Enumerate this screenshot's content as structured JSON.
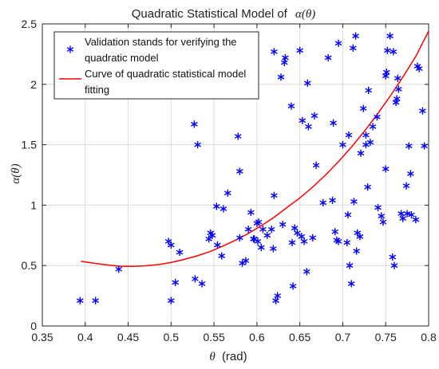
{
  "chart_data": {
    "type": "scatter",
    "title": {
      "prefix": "Quadratic Statistical Model of",
      "math": "α(θ)"
    },
    "xlabel": {
      "symbol": "θ",
      "unit": "(rad)"
    },
    "ylabel": "α(θ)",
    "xlim": [
      0.35,
      0.8
    ],
    "ylim": [
      0,
      2.5
    ],
    "xticks": [
      "0.35",
      "0.4",
      "0.45",
      "0.5",
      "0.55",
      "0.6",
      "0.65",
      "0.7",
      "0.75",
      "0.8"
    ],
    "yticks": [
      "0",
      "0.5",
      "1",
      "1.5",
      "2",
      "2.5"
    ],
    "grid": true,
    "legend_position": "top-left",
    "series": [
      {
        "name": "Validation stands for verifying the quadratic model",
        "legend_lines": [
          "Validation stands for verifying the",
          "quadratic model"
        ],
        "type": "scatter",
        "marker": "*",
        "color": "#0000ff",
        "points": [
          [
            0.394,
            0.21
          ],
          [
            0.412,
            0.21
          ],
          [
            0.439,
            0.47
          ],
          [
            0.497,
            0.7
          ],
          [
            0.5,
            0.67
          ],
          [
            0.5,
            0.21
          ],
          [
            0.505,
            0.36
          ],
          [
            0.51,
            0.61
          ],
          [
            0.527,
            1.67
          ],
          [
            0.528,
            0.39
          ],
          [
            0.531,
            1.5
          ],
          [
            0.536,
            0.35
          ],
          [
            0.544,
            0.72
          ],
          [
            0.546,
            0.77
          ],
          [
            0.548,
            0.75
          ],
          [
            0.553,
            0.99
          ],
          [
            0.554,
            0.67
          ],
          [
            0.559,
            0.58
          ],
          [
            0.561,
            0.97
          ],
          [
            0.566,
            1.1
          ],
          [
            0.578,
            1.57
          ],
          [
            0.58,
            1.28
          ],
          [
            0.58,
            0.73
          ],
          [
            0.583,
            0.52
          ],
          [
            0.587,
            0.54
          ],
          [
            0.59,
            0.8
          ],
          [
            0.593,
            0.94
          ],
          [
            0.596,
            0.72
          ],
          [
            0.597,
            0.72
          ],
          [
            0.6,
            0.85
          ],
          [
            0.601,
            0.7
          ],
          [
            0.602,
            0.86
          ],
          [
            0.605,
            0.65
          ],
          [
            0.607,
            0.8
          ],
          [
            0.612,
            0.75
          ],
          [
            0.617,
            0.8
          ],
          [
            0.619,
            0.64
          ],
          [
            0.62,
            1.08
          ],
          [
            0.62,
            2.27
          ],
          [
            0.622,
            0.21
          ],
          [
            0.624,
            0.25
          ],
          [
            0.628,
            2.06
          ],
          [
            0.63,
            0.84
          ],
          [
            0.632,
            2.18
          ],
          [
            0.633,
            2.22
          ],
          [
            0.64,
            1.82
          ],
          [
            0.641,
            0.69
          ],
          [
            0.642,
            0.33
          ],
          [
            0.644,
            0.81
          ],
          [
            0.647,
            0.77
          ],
          [
            0.65,
            2.28
          ],
          [
            0.652,
            0.74
          ],
          [
            0.653,
            1.7
          ],
          [
            0.655,
            0.7
          ],
          [
            0.658,
            0.45
          ],
          [
            0.659,
            2.01
          ],
          [
            0.66,
            1.65
          ],
          [
            0.665,
            0.73
          ],
          [
            0.667,
            1.74
          ],
          [
            0.669,
            1.33
          ],
          [
            0.677,
            1.02
          ],
          [
            0.683,
            2.22
          ],
          [
            0.688,
            1.04
          ],
          [
            0.689,
            1.68
          ],
          [
            0.691,
            0.78
          ],
          [
            0.693,
            0.71
          ],
          [
            0.695,
            0.7
          ],
          [
            0.695,
            2.34
          ],
          [
            0.7,
            1.5
          ],
          [
            0.705,
            0.69
          ],
          [
            0.706,
            0.92
          ],
          [
            0.707,
            1.58
          ],
          [
            0.708,
            0.5
          ],
          [
            0.71,
            0.35
          ],
          [
            0.712,
            2.3
          ],
          [
            0.713,
            1.03
          ],
          [
            0.715,
            2.4
          ],
          [
            0.716,
            0.62
          ],
          [
            0.717,
            0.77
          ],
          [
            0.72,
            0.74
          ],
          [
            0.721,
            1.43
          ],
          [
            0.724,
            1.8
          ],
          [
            0.727,
            1.5
          ],
          [
            0.727,
            1.58
          ],
          [
            0.729,
            1.15
          ],
          [
            0.73,
            1.95
          ],
          [
            0.732,
            1.52
          ],
          [
            0.735,
            1.65
          ],
          [
            0.74,
            1.73
          ],
          [
            0.741,
            0.98
          ],
          [
            0.745,
            0.91
          ],
          [
            0.747,
            0.86
          ],
          [
            0.75,
            1.3
          ],
          [
            0.75,
            2.07
          ],
          [
            0.751,
            2.1
          ],
          [
            0.752,
            2.28
          ],
          [
            0.755,
            2.4
          ],
          [
            0.758,
            0.57
          ],
          [
            0.759,
            2.27
          ],
          [
            0.76,
            0.5
          ],
          [
            0.762,
            1.85
          ],
          [
            0.763,
            1.88
          ],
          [
            0.764,
            2.05
          ],
          [
            0.765,
            1.96
          ],
          [
            0.768,
            0.93
          ],
          [
            0.77,
            0.89
          ],
          [
            0.774,
            1.16
          ],
          [
            0.775,
            0.93
          ],
          [
            0.777,
            1.49
          ],
          [
            0.779,
            1.26
          ],
          [
            0.78,
            0.92
          ],
          [
            0.785,
            0.88
          ],
          [
            0.787,
            2.15
          ],
          [
            0.789,
            2.13
          ],
          [
            0.793,
            1.78
          ],
          [
            0.795,
            1.49
          ]
        ]
      },
      {
        "name": "Curve of quadratic statistical model fitting",
        "legend_lines": [
          "Curve of quadratic statistical model",
          "fitting"
        ],
        "type": "line",
        "color": "#ff0000",
        "points": [
          [
            0.395,
            0.535
          ],
          [
            0.41,
            0.52
          ],
          [
            0.425,
            0.505
          ],
          [
            0.44,
            0.495
          ],
          [
            0.455,
            0.493
          ],
          [
            0.47,
            0.498
          ],
          [
            0.485,
            0.508
          ],
          [
            0.5,
            0.525
          ],
          [
            0.515,
            0.55
          ],
          [
            0.53,
            0.58
          ],
          [
            0.545,
            0.615
          ],
          [
            0.56,
            0.66
          ],
          [
            0.575,
            0.71
          ],
          [
            0.59,
            0.765
          ],
          [
            0.605,
            0.83
          ],
          [
            0.62,
            0.9
          ],
          [
            0.635,
            0.98
          ],
          [
            0.65,
            1.06
          ],
          [
            0.665,
            1.15
          ],
          [
            0.68,
            1.25
          ],
          [
            0.695,
            1.36
          ],
          [
            0.71,
            1.48
          ],
          [
            0.725,
            1.61
          ],
          [
            0.74,
            1.75
          ],
          [
            0.755,
            1.9
          ],
          [
            0.77,
            2.06
          ],
          [
            0.785,
            2.23
          ],
          [
            0.8,
            2.44
          ]
        ]
      }
    ]
  }
}
